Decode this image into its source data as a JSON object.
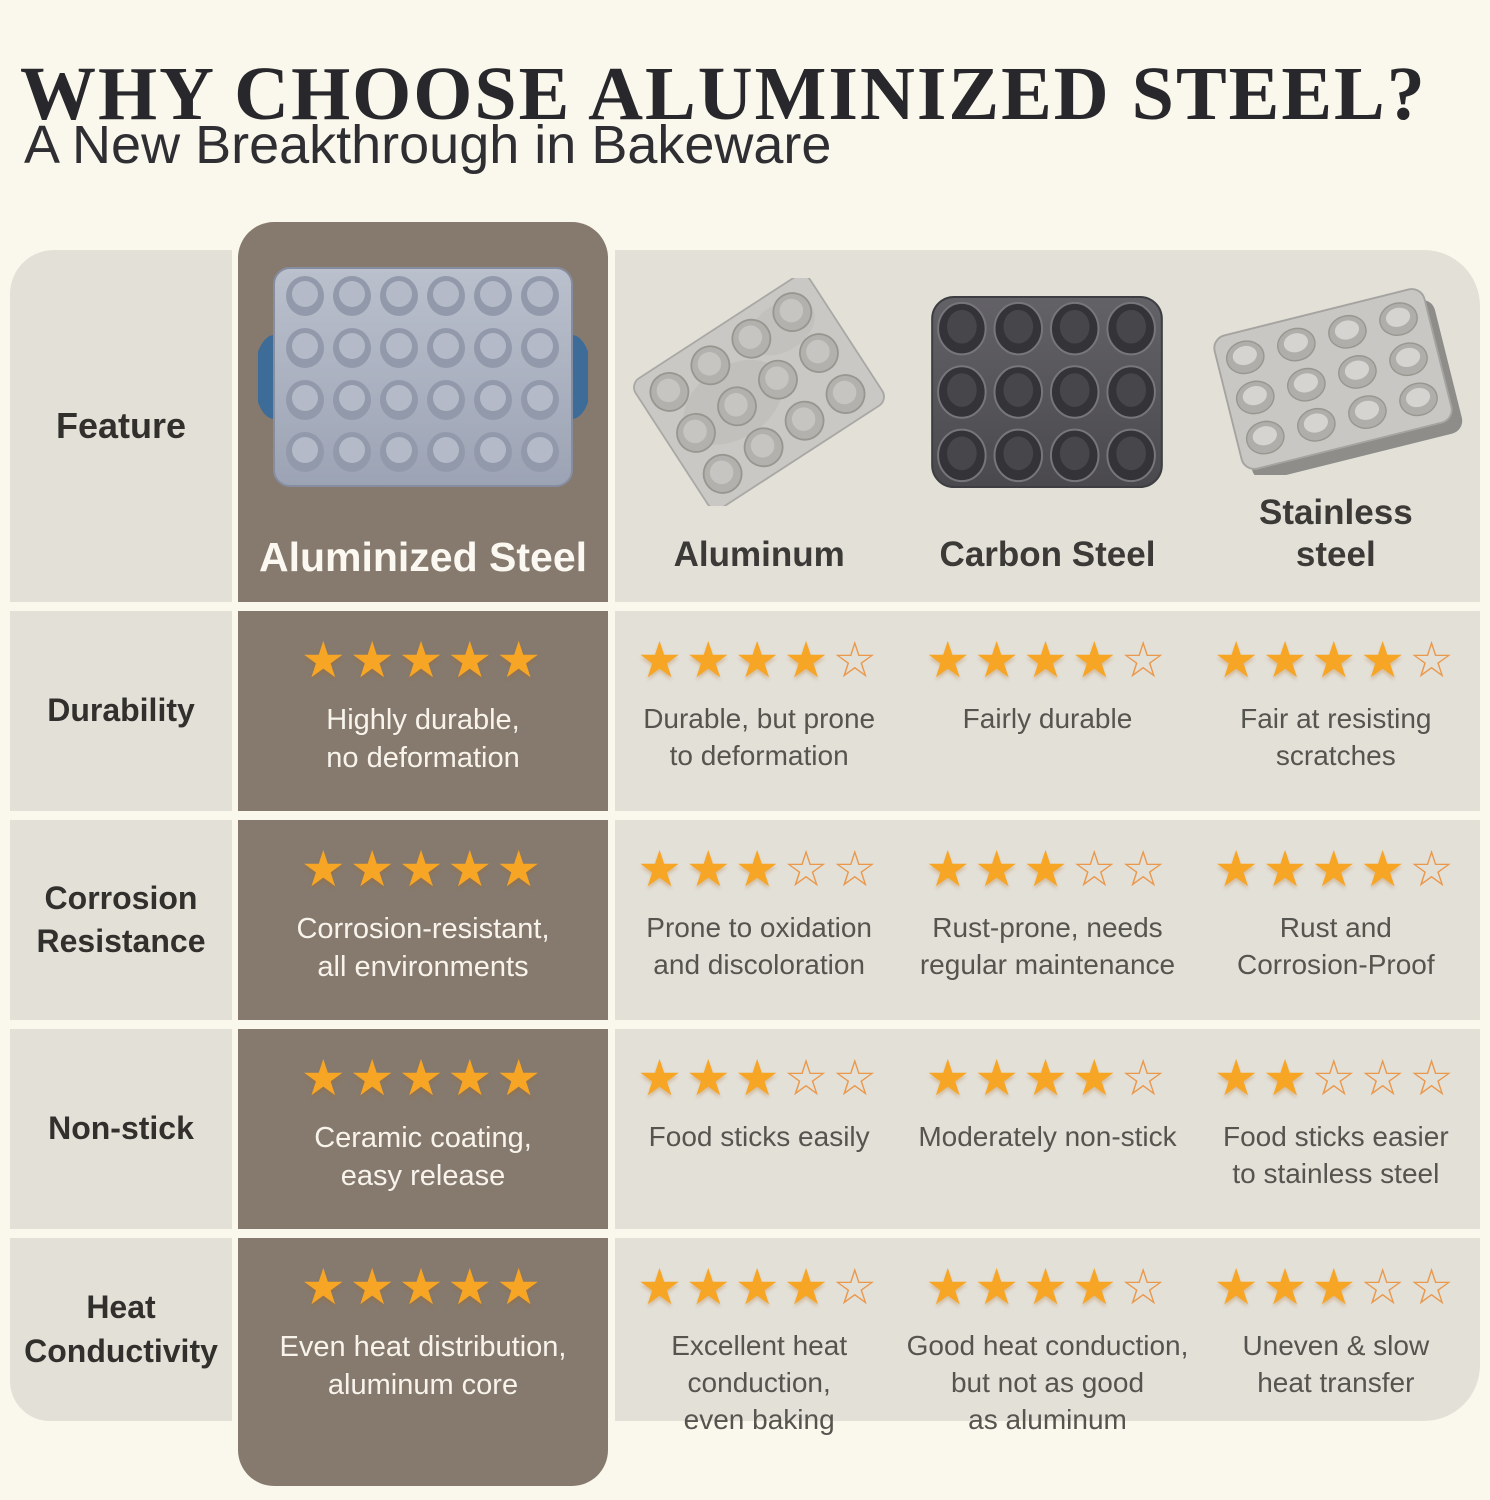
{
  "title": "WHY CHOOSE ALUMINIZED STEEL?",
  "subtitle": "A New Breakthrough in Bakeware",
  "colors": {
    "page_bg": "#faf8ec",
    "row_bg": "#e3e0d8",
    "highlight_bg": "#867a6e",
    "star_filled": "#f6a525",
    "star_outline": "#ea984b",
    "title_color": "#28272b",
    "heading_color": "#3b3a36",
    "note_color": "#56544e",
    "note_on_brown": "#f8f4ec",
    "label_on_brown": "#fbf8f1",
    "handle_blue": "#3e6c99"
  },
  "table": {
    "feature_header": "Feature",
    "max_stars": 5,
    "columns": [
      {
        "id": "aluminized_steel",
        "label": "Aluminized Steel",
        "highlight": true,
        "pan_icon": "aluminized-steel-pan"
      },
      {
        "id": "aluminum",
        "label": "Aluminum",
        "highlight": false,
        "pan_icon": "aluminum-pan"
      },
      {
        "id": "carbon_steel",
        "label": "Carbon Steel",
        "highlight": false,
        "pan_icon": "carbon-steel-pan"
      },
      {
        "id": "stainless_steel",
        "label": "Stainless\nsteel",
        "highlight": false,
        "pan_icon": "stainless-steel-pan"
      }
    ],
    "rows": [
      {
        "feature": "Durability",
        "cells": [
          {
            "stars": 5,
            "note": "Highly durable,\nno deformation"
          },
          {
            "stars": 4,
            "note": "Durable, but prone\nto deformation"
          },
          {
            "stars": 4,
            "note": "Fairly durable"
          },
          {
            "stars": 4,
            "note": "Fair at resisting\nscratches"
          }
        ]
      },
      {
        "feature": "Corrosion\nResistance",
        "cells": [
          {
            "stars": 5,
            "note": "Corrosion-resistant,\nall environments"
          },
          {
            "stars": 3,
            "note": "Prone to oxidation\nand discoloration"
          },
          {
            "stars": 3,
            "note": "Rust-prone, needs\nregular maintenance"
          },
          {
            "stars": 4,
            "note": "Rust and\nCorrosion-Proof"
          }
        ]
      },
      {
        "feature": "Non-stick",
        "cells": [
          {
            "stars": 5,
            "note": "Ceramic coating,\neasy release"
          },
          {
            "stars": 3,
            "note": "Food sticks easily"
          },
          {
            "stars": 4,
            "note": "Moderately non-stick"
          },
          {
            "stars": 2,
            "note": "Food sticks easier\nto stainless steel"
          }
        ]
      },
      {
        "feature": "Heat\nConductivity",
        "cells": [
          {
            "stars": 5,
            "note": "Even heat distribution,\naluminum core"
          },
          {
            "stars": 4,
            "note": "Excellent heat\nconduction,\neven baking"
          },
          {
            "stars": 4,
            "note": "Good heat conduction,\nbut not as good\nas aluminum"
          },
          {
            "stars": 3,
            "note": "Uneven & slow\nheat transfer"
          }
        ]
      }
    ]
  },
  "chart_data": {
    "type": "table",
    "title": "WHY CHOOSE ALUMINIZED STEEL?",
    "subtitle": "A New Breakthrough in Bakeware",
    "row_header": "Feature",
    "columns": [
      "Aluminized Steel",
      "Aluminum",
      "Carbon Steel",
      "Stainless steel"
    ],
    "rows": [
      "Durability",
      "Corrosion Resistance",
      "Non-stick",
      "Heat Conductivity"
    ],
    "ratings_out_of_5": [
      [
        5,
        4,
        4,
        4
      ],
      [
        5,
        3,
        3,
        4
      ],
      [
        5,
        3,
        4,
        2
      ],
      [
        5,
        4,
        4,
        3
      ]
    ],
    "notes": [
      [
        "Highly durable, no deformation",
        "Durable, but prone to deformation",
        "Fairly durable",
        "Fair at resisting scratches"
      ],
      [
        "Corrosion-resistant, all environments",
        "Prone to oxidation and discoloration",
        "Rust-prone, needs regular maintenance",
        "Rust and Corrosion-Proof"
      ],
      [
        "Ceramic coating, easy release",
        "Food sticks easily",
        "Moderately non-stick",
        "Food sticks easier to stainless steel"
      ],
      [
        "Even heat distribution, aluminum core",
        "Excellent heat conduction, even baking",
        "Good heat conduction, but not as good as aluminum",
        "Uneven & slow heat transfer"
      ]
    ],
    "legend_position": "none",
    "highlighted_column": "Aluminized Steel"
  }
}
